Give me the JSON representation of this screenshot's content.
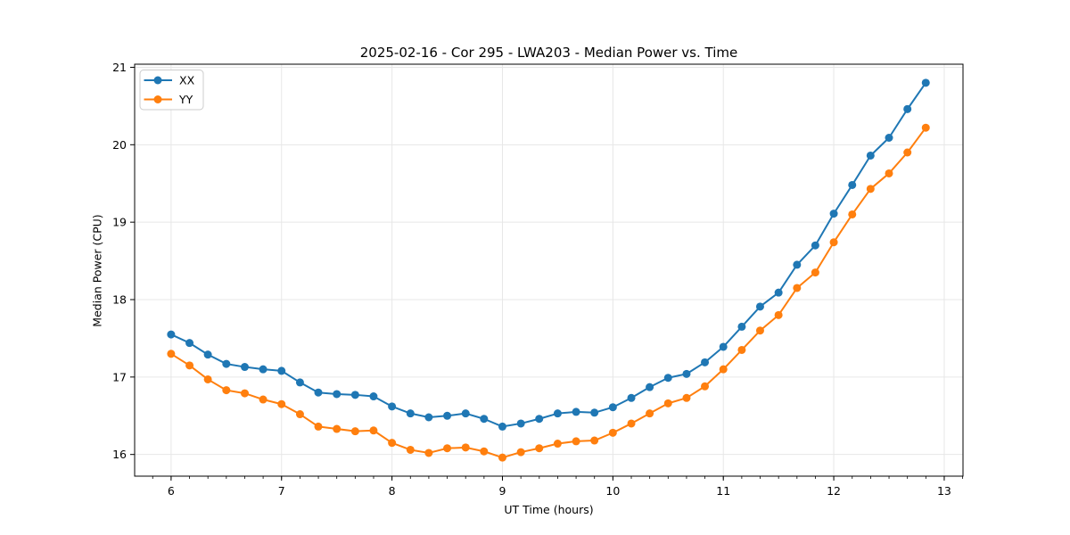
{
  "figure": {
    "background": "#ffffff",
    "text_color": "#000000",
    "grid_color": "#e7e7e7",
    "spine_color": "#000000"
  },
  "chart_data": {
    "type": "line",
    "title": "2025-02-16 - Cor 295 - LWA203 - Median Power vs. Time",
    "xlabel": "UT Time (hours)",
    "ylabel": "Median Power (CPU)",
    "xlim": [
      5.67,
      13.17
    ],
    "ylim": [
      15.72,
      21.04
    ],
    "x_ticks": [
      6,
      7,
      8,
      9,
      10,
      11,
      12,
      13
    ],
    "y_ticks": [
      16,
      17,
      18,
      19,
      20,
      21
    ],
    "x_minor_step": 0.16667,
    "grid": true,
    "legend_position": "upper-left",
    "marker": "circle",
    "x": [
      6.0,
      6.167,
      6.333,
      6.5,
      6.667,
      6.833,
      7.0,
      7.167,
      7.333,
      7.5,
      7.667,
      7.833,
      8.0,
      8.167,
      8.333,
      8.5,
      8.667,
      8.833,
      9.0,
      9.167,
      9.333,
      9.5,
      9.667,
      9.833,
      10.0,
      10.167,
      10.333,
      10.5,
      10.667,
      10.833,
      11.0,
      11.167,
      11.333,
      11.5,
      11.667,
      11.833,
      12.0,
      12.167,
      12.333,
      12.5,
      12.667,
      12.833
    ],
    "series": [
      {
        "name": "XX",
        "color": "#1f77b4",
        "values": [
          17.55,
          17.44,
          17.29,
          17.17,
          17.13,
          17.1,
          17.08,
          16.93,
          16.8,
          16.78,
          16.77,
          16.75,
          16.62,
          16.53,
          16.48,
          16.5,
          16.53,
          16.46,
          16.36,
          16.4,
          16.46,
          16.53,
          16.55,
          16.54,
          16.61,
          16.73,
          16.87,
          16.99,
          17.04,
          17.19,
          17.39,
          17.65,
          17.91,
          18.09,
          18.45,
          18.7,
          19.11,
          19.48,
          19.86,
          20.09,
          20.46,
          20.8
        ]
      },
      {
        "name": "YY",
        "color": "#ff7f0e",
        "values": [
          17.3,
          17.15,
          16.97,
          16.83,
          16.79,
          16.71,
          16.65,
          16.52,
          16.36,
          16.33,
          16.3,
          16.31,
          16.15,
          16.06,
          16.02,
          16.08,
          16.09,
          16.04,
          15.96,
          16.03,
          16.08,
          16.14,
          16.17,
          16.18,
          16.28,
          16.4,
          16.53,
          16.66,
          16.73,
          16.88,
          17.1,
          17.35,
          17.6,
          17.8,
          18.15,
          18.35,
          18.74,
          19.1,
          19.43,
          19.63,
          19.9,
          20.22
        ]
      }
    ]
  }
}
